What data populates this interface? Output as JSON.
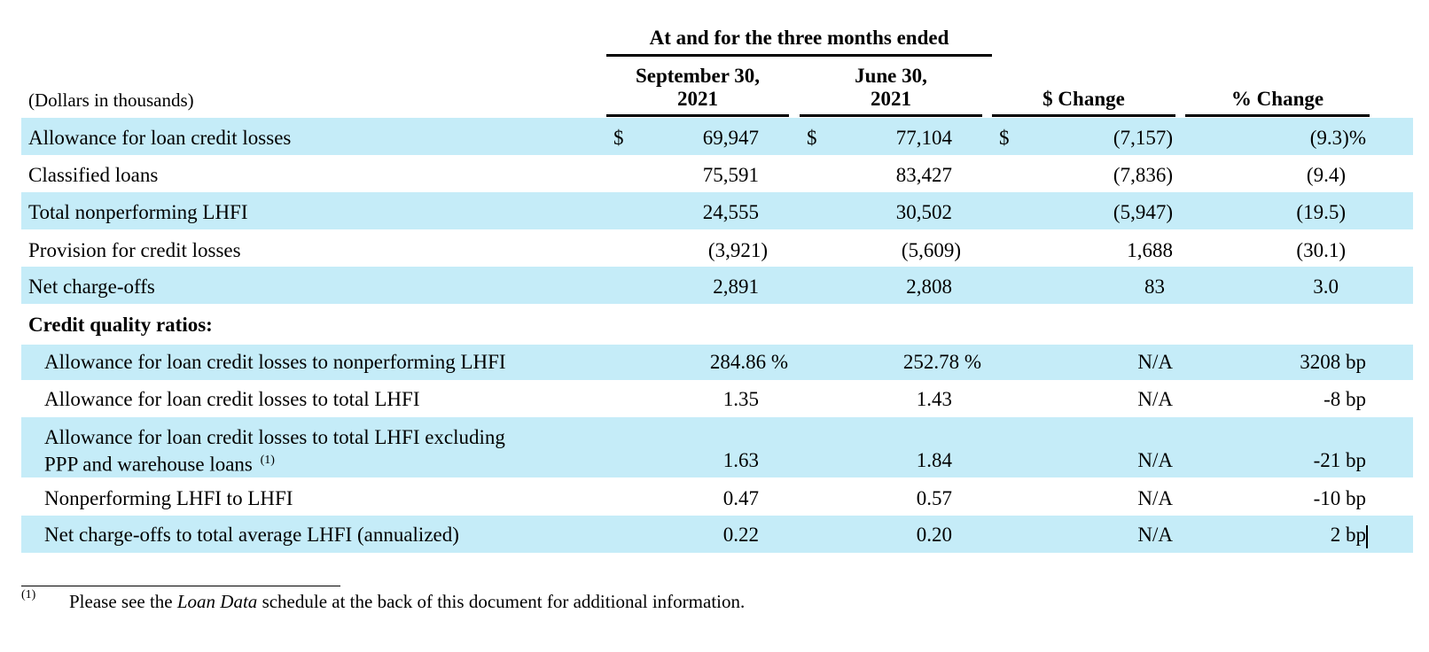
{
  "header": {
    "group_title": "At and for the three months ended",
    "units": "(Dollars in thousands)",
    "col1": [
      "September 30,",
      "2021"
    ],
    "col2": [
      "June 30,",
      "2021"
    ],
    "col3": "$ Change",
    "col4": "% Change",
    "dollar": "$"
  },
  "rows": [
    {
      "label": "Allowance for loan credit losses",
      "v1": "69,947",
      "v2": "77,104",
      "v3": "(7,157)",
      "v4": "(9.3)%"
    },
    {
      "label": "Classified loans",
      "v1": "75,591",
      "v2": "83,427",
      "v3": "(7,836)",
      "v4": "(9.4)"
    },
    {
      "label": "Total nonperforming LHFI",
      "v1": "24,555",
      "v2": "30,502",
      "v3": "(5,947)",
      "v4": "(19.5)"
    },
    {
      "label": "Provision for credit losses",
      "v1": "(3,921)",
      "v2": "(5,609)",
      "v3": "1,688",
      "v4": "(30.1)"
    },
    {
      "label": "Net charge-offs",
      "v1": "2,891",
      "v2": "2,808",
      "v3": "83",
      "v4": "3.0"
    }
  ],
  "section_title": "Credit quality ratios:",
  "ratios": [
    {
      "label": "Allowance for loan credit losses to nonperforming LHFI",
      "v1": "284.86 %",
      "v2": "252.78 %",
      "v3": "N/A",
      "v4": "3208 bp"
    },
    {
      "label": "Allowance for loan credit losses to total LHFI",
      "v1": "1.35",
      "v2": "1.43",
      "v3": "N/A",
      "v4": "-8 bp"
    },
    {
      "label_line1": "Allowance for loan credit losses to total LHFI excluding",
      "label_line2": "PPP and warehouse loans",
      "sup": "(1)",
      "v1": "1.63",
      "v2": "1.84",
      "v3": "N/A",
      "v4": "-21 bp"
    },
    {
      "label": "Nonperforming LHFI to LHFI",
      "v1": "0.47",
      "v2": "0.57",
      "v3": "N/A",
      "v4": "-10 bp"
    },
    {
      "label": "Net charge-offs to total average LHFI (annualized)",
      "v1": "0.22",
      "v2": "0.20",
      "v3": "N/A",
      "v4": "2 bp"
    }
  ],
  "footnote": {
    "marker": "(1)",
    "text_before": "Please see the",
    "text_italic": "Loan Data",
    "text_after": "schedule at the back of this document for additional information."
  },
  "colors": {
    "row_band": "#c5ecf8"
  }
}
